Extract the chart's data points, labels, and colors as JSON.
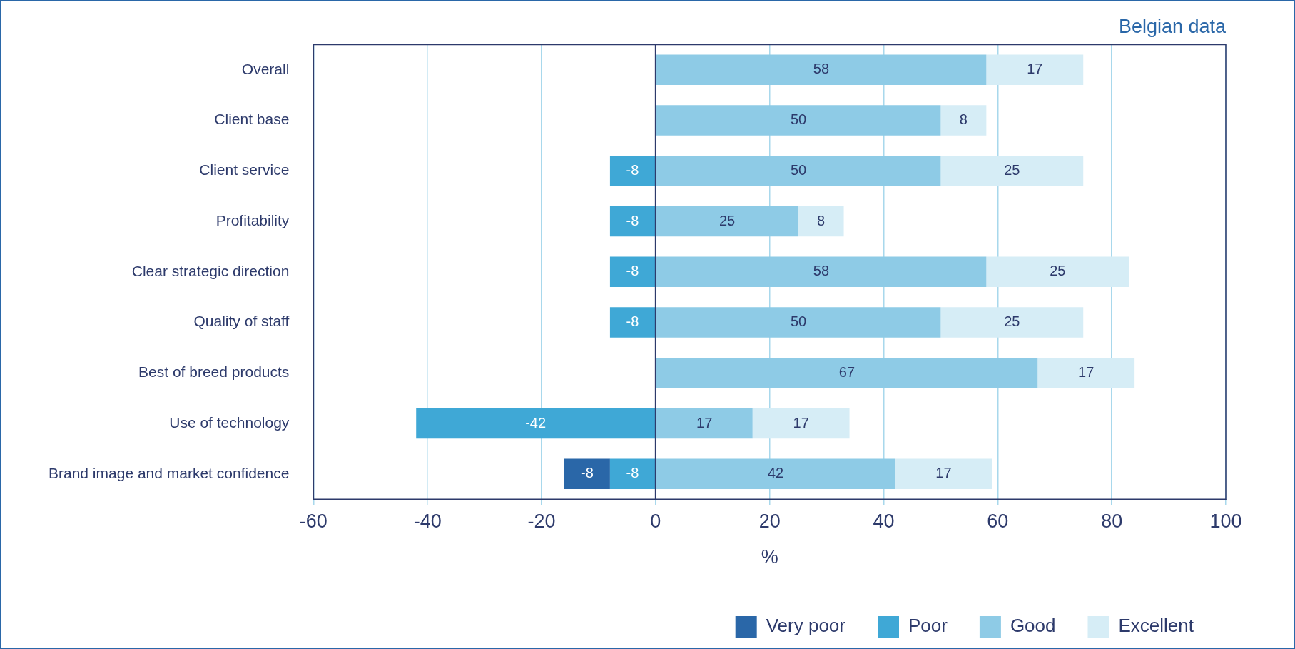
{
  "chart_data": {
    "type": "bar",
    "orientation": "horizontal",
    "stacked": true,
    "title": "Belgian data",
    "xlabel": "%",
    "categories": [
      "Overall",
      "Client base",
      "Client service",
      "Profitability",
      "Clear strategic direction",
      "Quality of staff",
      "Best of breed products",
      "Use of technology",
      "Brand image and market confidence"
    ],
    "series": [
      {
        "name": "Poor",
        "color": "#3fa8d6",
        "values": [
          null,
          null,
          -8,
          -8,
          -8,
          -8,
          null,
          -42,
          -8
        ]
      },
      {
        "name": "Very poor",
        "color": "#2a67a8",
        "values": [
          null,
          null,
          null,
          null,
          null,
          null,
          null,
          null,
          -8
        ]
      },
      {
        "name": "Good",
        "color": "#8ecbe6",
        "values": [
          58,
          50,
          50,
          25,
          58,
          50,
          67,
          17,
          42
        ]
      },
      {
        "name": "Excellent",
        "color": "#d6edf6",
        "values": [
          17,
          8,
          25,
          8,
          25,
          25,
          17,
          17,
          17
        ]
      }
    ],
    "xlim": [
      -60,
      100
    ],
    "xticks": [
      -60,
      -40,
      -20,
      0,
      20,
      40,
      60,
      80,
      100
    ],
    "grid": "x",
    "ref_lines": [
      {
        "axis": "x",
        "value": 0,
        "color": "#2d3a6b"
      }
    ],
    "legend": "bottom right",
    "data_labels": true
  }
}
